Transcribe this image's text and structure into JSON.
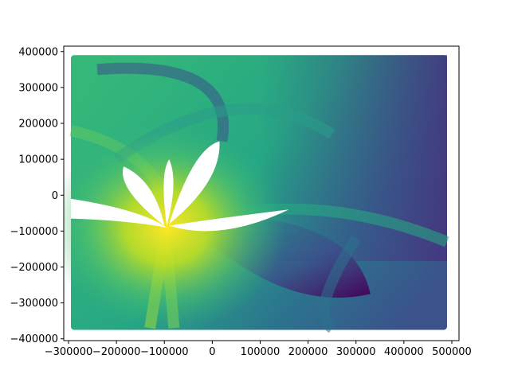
{
  "chart_data": {
    "type": "scatter",
    "title": "",
    "xlabel": "",
    "ylabel": "",
    "xlim": [
      -310000,
      515000
    ],
    "ylim": [
      -405000,
      415000
    ],
    "grid": false,
    "colormap": "viridis",
    "colormap_colors": [
      "#440154",
      "#3b528b",
      "#21918c",
      "#5ec962",
      "#fde725"
    ],
    "point_domain": {
      "x": [
        -295000,
        490000
      ],
      "y": [
        -375000,
        390000
      ]
    },
    "bright_center": {
      "x": -95000,
      "y": -90000
    },
    "dark_corner": {
      "x": 330000,
      "y": -275000
    },
    "xticks": [
      {
        "value": -300000,
        "label": "−300000"
      },
      {
        "value": -200000,
        "label": "−200000"
      },
      {
        "value": -100000,
        "label": "−100000"
      },
      {
        "value": 0,
        "label": "0"
      },
      {
        "value": 100000,
        "label": "100000"
      },
      {
        "value": 200000,
        "label": "200000"
      },
      {
        "value": 300000,
        "label": "300000"
      },
      {
        "value": 400000,
        "label": "400000"
      },
      {
        "value": 500000,
        "label": "500000"
      }
    ],
    "yticks": [
      {
        "value": -400000,
        "label": "−400000"
      },
      {
        "value": -300000,
        "label": "−300000"
      },
      {
        "value": -200000,
        "label": "−200000"
      },
      {
        "value": -100000,
        "label": "−100000"
      },
      {
        "value": 0,
        "label": "0"
      },
      {
        "value": 100000,
        "label": "100000"
      },
      {
        "value": 200000,
        "label": "200000"
      },
      {
        "value": 300000,
        "label": "300000"
      },
      {
        "value": 400000,
        "label": "400000"
      }
    ]
  }
}
